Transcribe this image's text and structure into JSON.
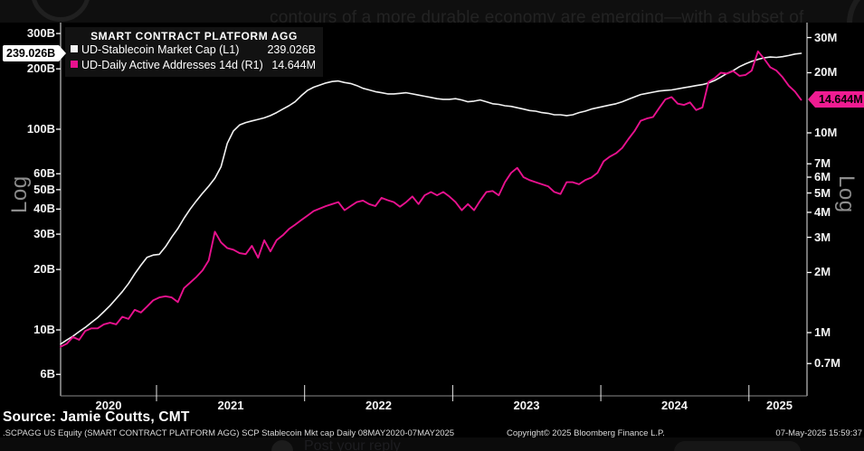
{
  "article": {
    "headline_fragment": "contours of a more durable economy are emerging—with a subset of",
    "reply_placeholder": "Post your reply"
  },
  "chart": {
    "legend": {
      "title": "SMART CONTRACT PLATFORM AGG",
      "items": [
        {
          "label": "UD-Stablecoin Market Cap  (L1)",
          "value": "239.026B"
        },
        {
          "label": "UD-Daily Active Addresses 14d  (R1)",
          "value": "14.644M"
        }
      ]
    },
    "left_axis_scale_label": "Log",
    "right_axis_scale_label": "Log",
    "left_callout_value": "239.026B",
    "right_callout_value": "14.644M"
  },
  "chart_data": {
    "type": "line",
    "title": "SMART CONTRACT PLATFORM AGG",
    "x_range": "08MAY2020 - 07MAY2025, points at half-month intervals",
    "x_axis_years": [
      "2020",
      "2021",
      "2022",
      "2023",
      "2024",
      "2025"
    ],
    "left_axis": {
      "scale": "log",
      "unit": "USD billions",
      "ticks": [
        "300B",
        "200B",
        "100B",
        "60B",
        "50B",
        "40B",
        "30B",
        "20B",
        "10B",
        "6B"
      ]
    },
    "right_axis": {
      "scale": "log",
      "unit": "millions of addresses",
      "ticks": [
        "30M",
        "20M",
        "10M",
        "7M",
        "6M",
        "5M",
        "4M",
        "3M",
        "2M",
        "1M",
        "0.7M"
      ]
    },
    "grid": false,
    "legend_position": "top-left",
    "series": [
      {
        "name": "UD-Stablecoin Market Cap (L1)",
        "axis": "left",
        "color": "#f2f2f2",
        "last_value": 239.026,
        "values": [
          8.5,
          8.9,
          9.3,
          9.8,
          10.3,
          10.9,
          11.5,
          12.3,
          13.2,
          14.3,
          15.5,
          17.0,
          19.0,
          21.0,
          23.0,
          23.6,
          23.8,
          26,
          29,
          32,
          36,
          40,
          44,
          48,
          52,
          57,
          65,
          85,
          98,
          105,
          108,
          110,
          112,
          114,
          117,
          121,
          126,
          131,
          137,
          147,
          156,
          162,
          166,
          170,
          173,
          174,
          171,
          169,
          165,
          160,
          157,
          154,
          152,
          150,
          150,
          151,
          152,
          150,
          148,
          146,
          144,
          142,
          141,
          141,
          142,
          140,
          137,
          138,
          140,
          137,
          134,
          133,
          131,
          130,
          128,
          126,
          124,
          123,
          121,
          120,
          118,
          118,
          117,
          118,
          121,
          123,
          126,
          128,
          130,
          132,
          134,
          137,
          141,
          145,
          149,
          151,
          153,
          155,
          156,
          157,
          159,
          161,
          163,
          165,
          167,
          170,
          175,
          182,
          190,
          196,
          205,
          212,
          218,
          223,
          227,
          229,
          228,
          230,
          233,
          237,
          239.026
        ]
      },
      {
        "name": "UD-Daily Active Addresses 14d (R1)",
        "axis": "right",
        "color": "#e8118e",
        "last_value": 14.644,
        "values": [
          0.85,
          0.88,
          0.95,
          0.92,
          1.02,
          1.05,
          1.05,
          1.1,
          1.12,
          1.1,
          1.2,
          1.17,
          1.3,
          1.26,
          1.35,
          1.45,
          1.5,
          1.52,
          1.5,
          1.42,
          1.67,
          1.78,
          1.9,
          2.05,
          2.3,
          3.2,
          2.83,
          2.65,
          2.6,
          2.5,
          2.47,
          2.72,
          2.37,
          2.9,
          2.55,
          2.9,
          3.07,
          3.3,
          3.47,
          3.66,
          3.85,
          4.06,
          4.18,
          4.3,
          4.4,
          4.5,
          4.1,
          4.3,
          4.5,
          4.58,
          4.4,
          4.3,
          4.73,
          4.6,
          4.5,
          4.27,
          4.5,
          4.8,
          4.4,
          4.87,
          5.06,
          4.87,
          5.06,
          4.8,
          4.5,
          4.1,
          4.4,
          4.1,
          4.58,
          5.06,
          5.12,
          4.87,
          5.66,
          6.3,
          6.68,
          6.0,
          5.8,
          5.66,
          5.53,
          5.4,
          5.06,
          4.94,
          5.66,
          5.66,
          5.53,
          5.8,
          5.97,
          6.3,
          7.2,
          7.6,
          7.9,
          8.4,
          9.3,
          10.2,
          11.5,
          11.8,
          12.0,
          13.3,
          14.7,
          15.1,
          14.0,
          13.8,
          14.2,
          13.0,
          13.4,
          18.0,
          18.8,
          20.0,
          19.8,
          20.4,
          19.3,
          19.5,
          20.5,
          25.6,
          23.5,
          21.3,
          20.5,
          19.0,
          17.2,
          16.1,
          14.644
        ]
      }
    ]
  },
  "footer": {
    "source_line": "Source: Jamie Coutts, CMT",
    "footnote": ".SCPAGG US Equity (SMART CONTRACT PLATFORM AGG) SCP Stablecoin Mkt cap  Daily 08MAY2020-07MAY2025",
    "copyright": "Copyright© 2025 Bloomberg Finance L.P.",
    "timestamp": "07-May-2025 15:59:37"
  }
}
